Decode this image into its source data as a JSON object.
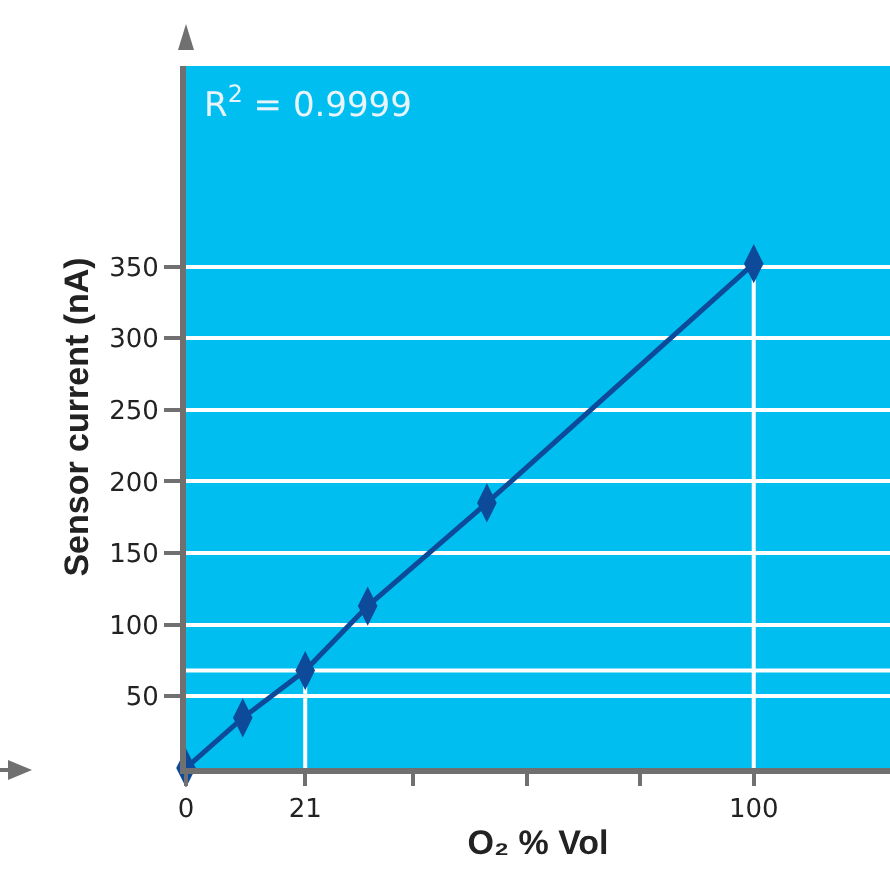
{
  "chart_data": {
    "type": "line",
    "xlabel": "O₂ % Vol",
    "ylabel": "Sensor current (nA)",
    "annotations": [
      "R$^{2}$ = 0.9999"
    ],
    "x": [
      0,
      10,
      21,
      32,
      53,
      100
    ],
    "series": [
      {
        "color": "#0d4a9a",
        "values": [
          0,
          35,
          68,
          113,
          185,
          352
        ]
      }
    ],
    "xlim": [
      0,
      124
    ],
    "xticks": [
      0,
      21,
      {
        "value": 40,
        "label": null
      },
      {
        "value": 60,
        "label": null
      },
      {
        "value": 80,
        "label": null
      },
      100
    ],
    "ylim": [
      0,
      490
    ],
    "yticks": [
      50,
      100,
      150,
      200,
      250,
      300,
      350
    ],
    "ref_lines": [
      {
        "axis": "x",
        "value": 21,
        "color": "#ffffff"
      },
      {
        "axis": "x",
        "value": 100,
        "color": "#ffffff"
      },
      {
        "axis": "y",
        "value": 68,
        "color": "#ffffff"
      }
    ],
    "grid": "y",
    "marker": "diamond",
    "line_style": "solid"
  }
}
